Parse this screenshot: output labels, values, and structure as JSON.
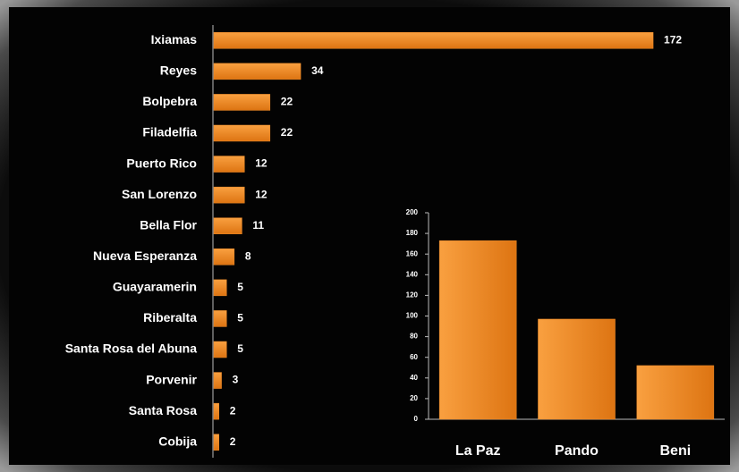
{
  "chart_data": [
    {
      "type": "bar",
      "orientation": "horizontal",
      "categories": [
        "Ixiamas",
        "Reyes",
        "Bolpebra",
        "Filadelfia",
        "Puerto Rico",
        "San Lorenzo",
        "Bella Flor",
        "Nueva Esperanza",
        "Guayaramerin",
        "Riberalta",
        "Santa Rosa del Abuna",
        "Porvenir",
        "Santa Rosa",
        "Cobija"
      ],
      "values": [
        172,
        34,
        22,
        22,
        12,
        12,
        11,
        8,
        5,
        5,
        5,
        3,
        2,
        2
      ],
      "color": "#f28c28"
    },
    {
      "type": "bar",
      "categories": [
        "La Paz",
        "Pando",
        "Beni"
      ],
      "values": [
        173,
        97,
        52
      ],
      "color": "#f28c28",
      "ylim": [
        0,
        200
      ],
      "yticks": [
        0,
        20,
        40,
        60,
        80,
        100,
        120,
        140,
        160,
        180,
        200
      ]
    }
  ]
}
